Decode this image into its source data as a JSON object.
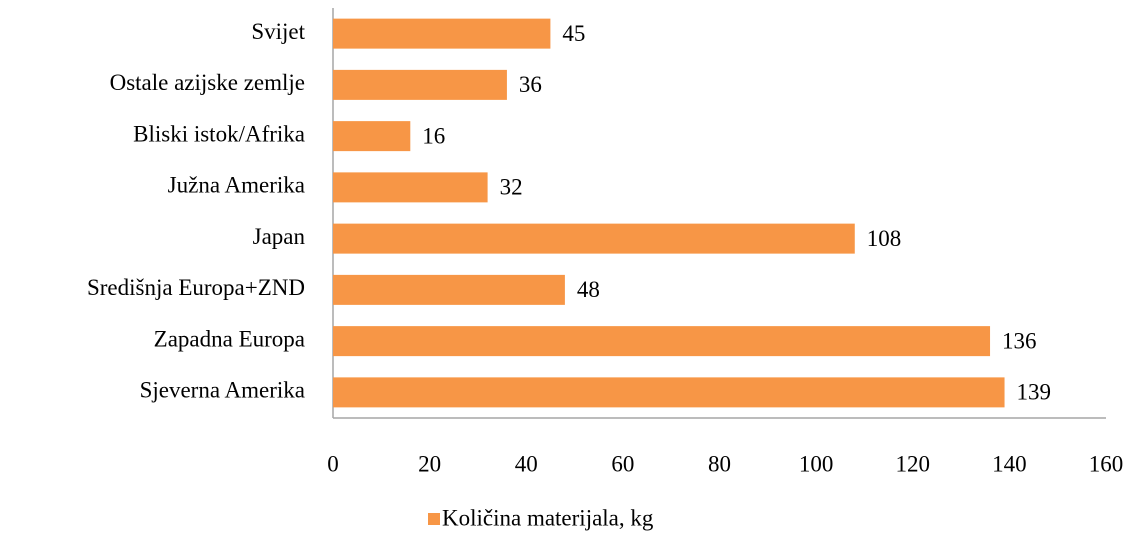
{
  "chart_data": {
    "type": "bar",
    "orientation": "horizontal",
    "categories": [
      "Svijet",
      "Ostale azijske zemlje",
      "Bliski istok/Afrika",
      "Južna Amerika",
      "Japan",
      "Središnja Europa+ZND",
      "Zapadna Europa",
      "Sjeverna Amerika"
    ],
    "series": [
      {
        "name": "Količina materijala, kg",
        "color": "#f79646",
        "values": [
          45,
          36,
          16,
          32,
          108,
          48,
          136,
          139
        ]
      }
    ],
    "xlim": [
      0,
      160
    ],
    "xticks": [
      0,
      20,
      40,
      60,
      80,
      100,
      120,
      140,
      160
    ],
    "grid": false,
    "legend": "bottom"
  }
}
